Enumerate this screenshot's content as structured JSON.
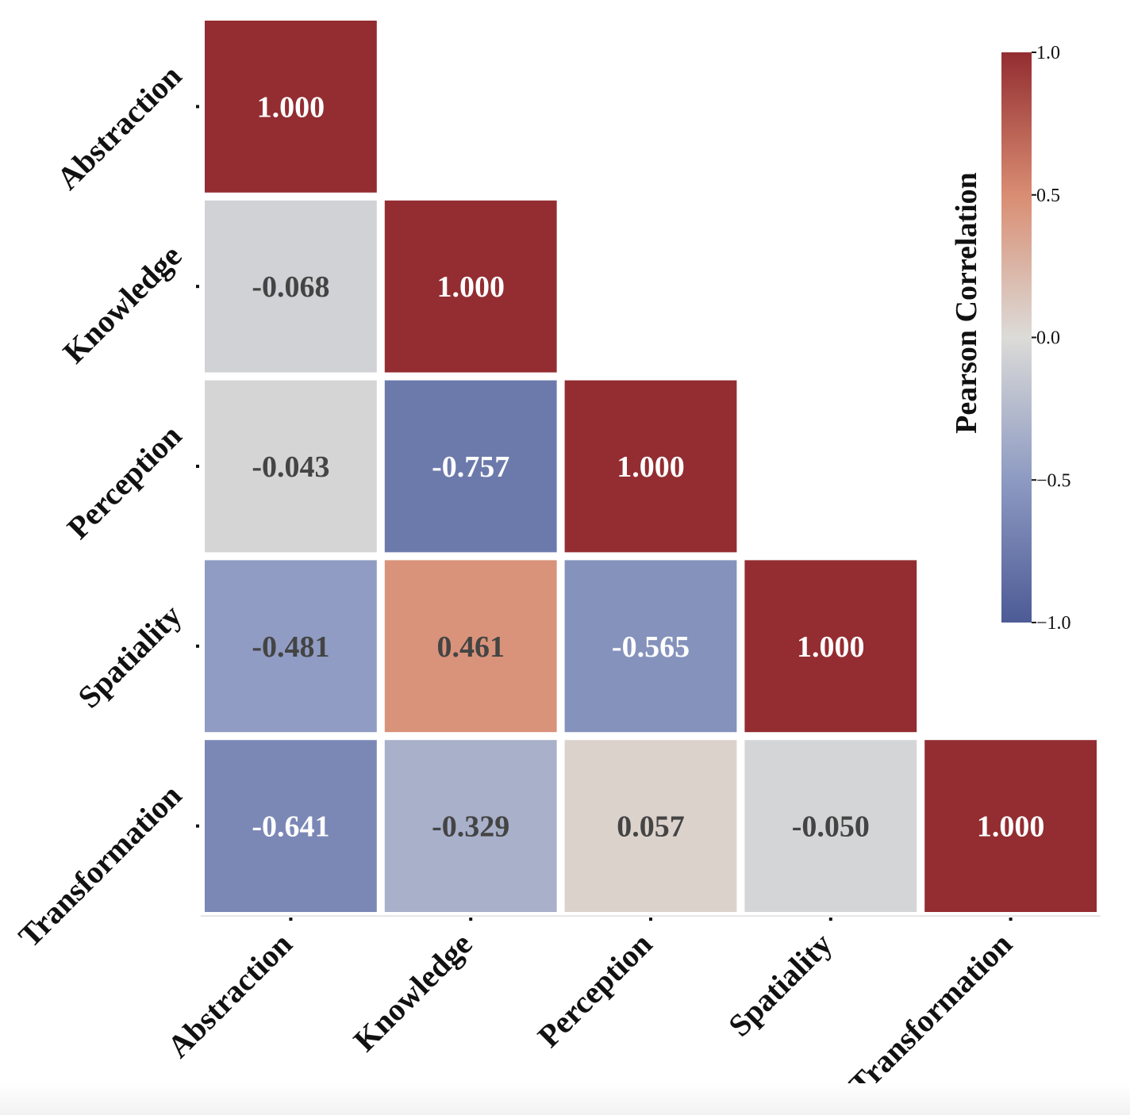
{
  "chart_data": {
    "type": "heatmap",
    "title": "",
    "layout": "lower-triangle",
    "x_labels": [
      "Abstraction",
      "Knowledge",
      "Perception",
      "Spatiality",
      "Transformation"
    ],
    "y_labels": [
      "Abstraction",
      "Knowledge",
      "Perception",
      "Spatiality",
      "Transformation"
    ],
    "matrix": [
      [
        1.0,
        null,
        null,
        null,
        null
      ],
      [
        -0.068,
        1.0,
        null,
        null,
        null
      ],
      [
        -0.043,
        -0.757,
        1.0,
        null,
        null
      ],
      [
        -0.481,
        0.461,
        -0.565,
        1.0,
        null
      ],
      [
        -0.641,
        -0.329,
        0.057,
        -0.05,
        1.0
      ]
    ],
    "value_format": "0.000",
    "colormap": "vlag",
    "vmin": -1.0,
    "vmax": 1.0,
    "colorbar": {
      "label": "Pearson Correlation",
      "ticks": [
        1.0,
        0.5,
        0.0,
        -0.5,
        -1.0
      ],
      "tick_labels": [
        "1.0",
        "0.5",
        "0.0",
        "−0.5",
        "−1.0"
      ]
    },
    "colors": {
      "positive": "#932d31",
      "neutral": "#d5d9de",
      "negative": "#4d5b96",
      "text_dark": "#444444",
      "text_light": "#ffffff"
    }
  }
}
